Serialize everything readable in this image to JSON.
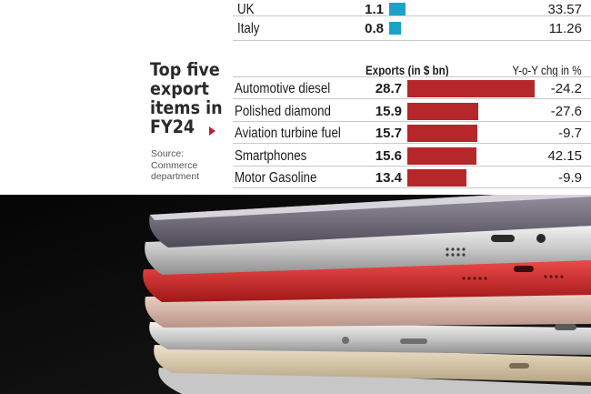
{
  "top_table": {
    "rows": [
      {
        "name": "UK",
        "value": 1.1,
        "value_label": "1.1",
        "change": "33.57"
      },
      {
        "name": "Italy",
        "value": 0.8,
        "value_label": "0.8",
        "change": "11.26"
      }
    ],
    "bar_color": "#1aa3c8"
  },
  "chart_data": {
    "type": "bar",
    "title": "Top five export items in FY24",
    "source": "Source: Commerce department",
    "col_exports": "Exports (in $ bn)",
    "col_change": "Y-o-Y chg in %",
    "categories": [
      "Automotive diesel",
      "Polished diamond",
      "Aviation turbine fuel",
      "Smartphones",
      "Motor Gasoline"
    ],
    "values": [
      28.7,
      15.9,
      15.7,
      15.6,
      13.4
    ],
    "value_labels": [
      "28.7",
      "15.9",
      "15.7",
      "15.6",
      "13.4"
    ],
    "changes": [
      "-24.2",
      "-27.6",
      "-9.7",
      "42.15",
      "-9.9"
    ],
    "bar_color": "#b5272a",
    "xlim": [
      0,
      30
    ]
  },
  "title_lines": [
    "Top five",
    "export",
    "items in",
    "FY24"
  ],
  "source_lines": [
    "Source:",
    "Commerce",
    "department"
  ]
}
